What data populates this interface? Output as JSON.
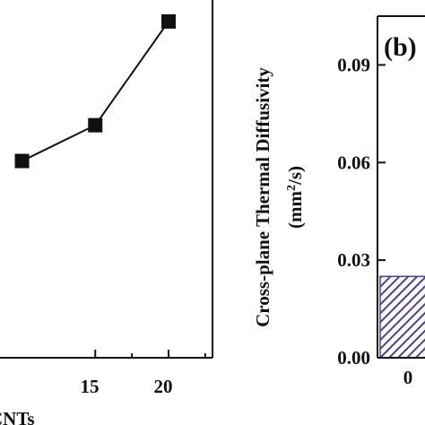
{
  "chart_data": [
    {
      "type": "line",
      "panel": "a",
      "x": [
        10,
        15,
        20
      ],
      "y": [
        55,
        65,
        94
      ],
      "series": [
        {
          "values": [
            55,
            65,
            94
          ]
        }
      ],
      "xticks": [
        "15",
        "20"
      ],
      "xlabel": "CNTs",
      "ylabel": "",
      "xlim": [
        8.5,
        23.0
      ],
      "ylim": [
        0,
        100
      ],
      "marker": "square",
      "color": "#111111"
    },
    {
      "type": "bar",
      "panel": "b",
      "panel_label": "(b)",
      "categories": [
        "0"
      ],
      "values": [
        0.025
      ],
      "ylabel_line1": "Cross-plane Thermal Diffusivity",
      "ylabel_unit_prefix": "(mm",
      "ylabel_unit_sup": "2",
      "ylabel_unit_suffix": "/s)",
      "yticks": [
        "0.00",
        "0.03",
        "0.06",
        "0.09"
      ],
      "ytick_values": [
        0.0,
        0.03,
        0.06,
        0.09
      ],
      "ylim": [
        0,
        0.105
      ],
      "bar_color": "#4a3f9a",
      "bar_pattern": "diagonal-hatch"
    }
  ]
}
